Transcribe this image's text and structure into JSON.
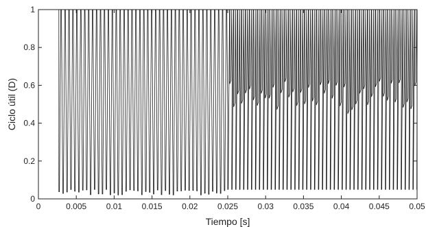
{
  "chart_data": {
    "type": "line",
    "title": "",
    "xlabel": "Tiempo [s]",
    "ylabel": "Ciclo útil (D)",
    "xlim": [
      0,
      0.05
    ],
    "ylim": [
      0,
      1
    ],
    "grid": false,
    "x_ticks": [
      "0",
      "0.005",
      "0.01",
      "0.015",
      "0.02",
      "0.025",
      "0.03",
      "0.035",
      "0.04",
      "0.045",
      "0.05"
    ],
    "y_ticks": [
      "0",
      "0.2",
      "0.4",
      "0.6",
      "0.8",
      "1"
    ],
    "series": [
      {
        "color": "#1a1a1a",
        "segments": [
          {
            "x_start": 0,
            "x_end": 0.0027,
            "description_value": 1
          },
          {
            "x_start": 0.0027,
            "x_end": 0.025,
            "oscillation_period": 0.00052,
            "max": 1,
            "min": 0.02
          },
          {
            "x_start": 0.025,
            "x_end": 0.05,
            "oscillation_period": 0.00052,
            "max": 1,
            "min": 0.05,
            "upper_band": [
              0.45,
              0.63
            ]
          }
        ]
      }
    ]
  }
}
